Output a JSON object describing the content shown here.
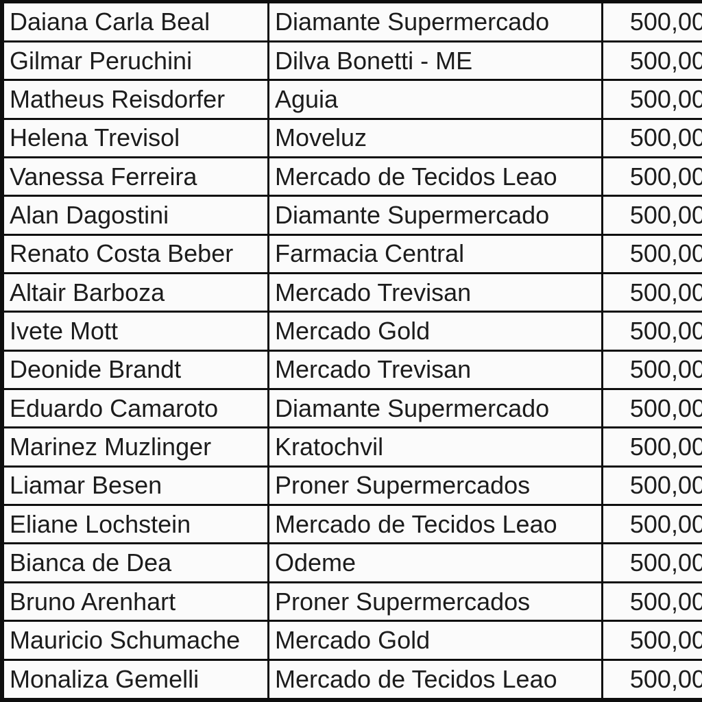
{
  "table": {
    "columns": [
      {
        "key": "name",
        "semantic": "person-name"
      },
      {
        "key": "company",
        "semantic": "business-name"
      },
      {
        "key": "value",
        "semantic": "amount"
      }
    ],
    "rows": [
      {
        "name": "Daiana Carla Beal",
        "company": "Diamante Supermercado",
        "value": "500,00"
      },
      {
        "name": "Gilmar Peruchini",
        "company": "Dilva Bonetti - ME",
        "value": "500,00"
      },
      {
        "name": "Matheus Reisdorfer",
        "company": "Aguia",
        "value": "500,00"
      },
      {
        "name": "Helena Trevisol",
        "company": "Moveluz",
        "value": "500,00"
      },
      {
        "name": "Vanessa Ferreira",
        "company": "Mercado de Tecidos Leao",
        "value": "500,00"
      },
      {
        "name": "Alan Dagostini",
        "company": "Diamante Supermercado",
        "value": "500,00"
      },
      {
        "name": "Renato Costa Beber",
        "company": "Farmacia Central",
        "value": "500,00"
      },
      {
        "name": "Altair Barboza",
        "company": "Mercado Trevisan",
        "value": "500,00"
      },
      {
        "name": "Ivete Mott",
        "company": "Mercado Gold",
        "value": "500,00"
      },
      {
        "name": "Deonide Brandt",
        "company": "Mercado Trevisan",
        "value": "500,00"
      },
      {
        "name": "Eduardo Camaroto",
        "company": "Diamante Supermercado",
        "value": "500,00"
      },
      {
        "name": "Marinez Muzlinger",
        "company": "Kratochvil",
        "value": "500,00"
      },
      {
        "name": "Liamar Besen",
        "company": "Proner Supermercados",
        "value": "500,00"
      },
      {
        "name": "Eliane Lochstein",
        "company": "Mercado de Tecidos Leao",
        "value": "500,00"
      },
      {
        "name": "Bianca de Dea",
        "company": "Odeme",
        "value": "500,00"
      },
      {
        "name": "Bruno Arenhart",
        "company": "Proner Supermercados",
        "value": "500,00"
      },
      {
        "name": "Mauricio Schumache",
        "company": "Mercado Gold",
        "value": "500,00"
      },
      {
        "name": "Monaliza Gemelli",
        "company": "Mercado de Tecidos Leao",
        "value": "500,00"
      }
    ]
  },
  "colors": {
    "grid_border": "#0e0e0e",
    "cell_background": "#fbfbfb",
    "text": "#1c1c1c"
  }
}
